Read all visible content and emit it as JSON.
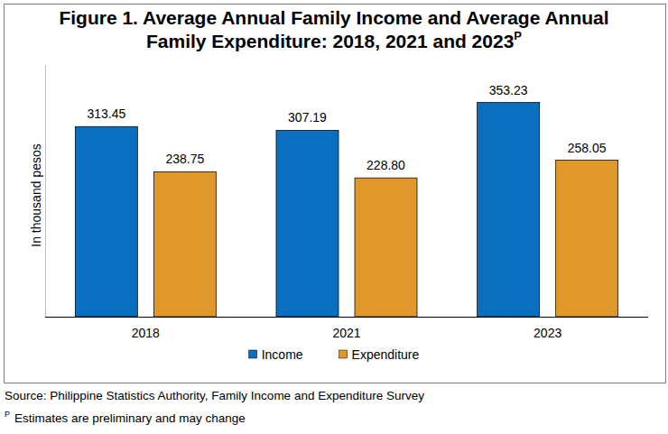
{
  "chart_data": {
    "type": "bar",
    "title": [
      "Figure 1. Average Annual Family Income and Average Annual",
      "Family Expenditure: 2018, 2021 and 2023"
    ],
    "title_superscript": "P",
    "y_label": "In thousand pesos",
    "categories": [
      "2018",
      "2021",
      "2023"
    ],
    "series": [
      {
        "name": "Income",
        "color": "#0b6fc0",
        "values": [
          313.45,
          307.19,
          353.23
        ],
        "value_labels": [
          "313.45",
          "307.19",
          "353.23"
        ]
      },
      {
        "name": "Expenditure",
        "color": "#e0982a",
        "values": [
          238.75,
          228.8,
          258.05
        ],
        "value_labels": [
          "238.75",
          "228.80",
          "258.05"
        ]
      }
    ],
    "ylim": [
      0,
      415
    ],
    "yticks": [],
    "grid": false,
    "legend": "bottom",
    "data_labels": true,
    "tick_labels": "x",
    "source": "Source: Philippine Statistics Authority, Family Income and Expenditure Survey",
    "footnote_mark": "P",
    "footnote": "Estimates are preliminary and may change"
  }
}
